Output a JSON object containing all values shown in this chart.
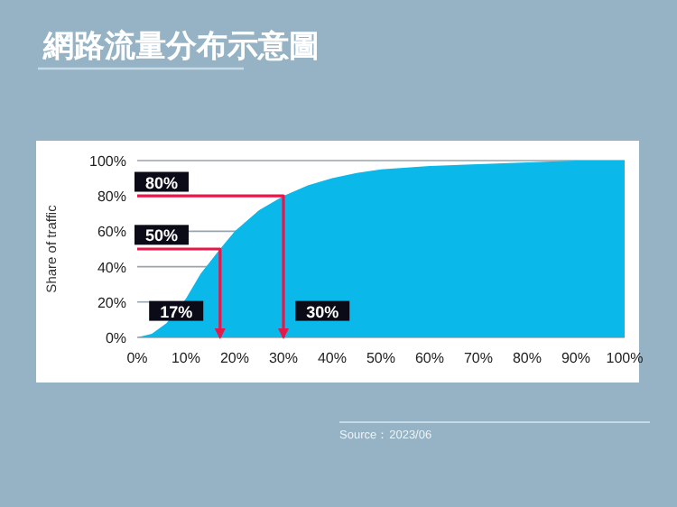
{
  "chart_data": {
    "type": "area",
    "title": "網路流量分布示意圖",
    "ylabel": "Share of traffic",
    "x": [
      0,
      3,
      6,
      10,
      13,
      17,
      20,
      25,
      30,
      35,
      40,
      45,
      50,
      60,
      70,
      80,
      90,
      100
    ],
    "series": [
      {
        "color": "#0ab8ea",
        "values": [
          0,
          2,
          8,
          22,
          36,
          50,
          60,
          72,
          80,
          86,
          90,
          93,
          95,
          97,
          98,
          99,
          100,
          100
        ]
      },
      {
        "type": "line",
        "color": "#e8174a",
        "x": [
          0,
          30,
          30
        ],
        "values": [
          80,
          80,
          0
        ]
      },
      {
        "type": "line",
        "color": "#e8174a",
        "x": [
          0,
          17,
          17
        ],
        "values": [
          50,
          50,
          0
        ]
      }
    ],
    "xlim": [
      0,
      100
    ],
    "ylim": [
      0,
      100
    ],
    "xticks": [
      {
        "value": 0,
        "label": "0%"
      },
      {
        "value": 10,
        "label": "10%"
      },
      {
        "value": 20,
        "label": "20%"
      },
      {
        "value": 30,
        "label": "30%"
      },
      {
        "value": 40,
        "label": "40%"
      },
      {
        "value": 50,
        "label": "50%"
      },
      {
        "value": 60,
        "label": "60%"
      },
      {
        "value": 70,
        "label": "70%"
      },
      {
        "value": 80,
        "label": "80%"
      },
      {
        "value": 90,
        "label": "90%"
      },
      {
        "value": 100,
        "label": "100%"
      }
    ],
    "yticks": [
      {
        "value": 0,
        "label": "0%"
      },
      {
        "value": 20,
        "label": "20%"
      },
      {
        "value": 40,
        "label": "40%"
      },
      {
        "value": 60,
        "label": "60%"
      },
      {
        "value": 80,
        "label": "80%"
      },
      {
        "value": 100,
        "label": "100%"
      }
    ],
    "grid": "y",
    "annotations": [
      {
        "text": "80%",
        "x": 5,
        "y": 88
      },
      {
        "text": "50%",
        "x": 5,
        "y": 58
      },
      {
        "text": "17%",
        "x": 8,
        "y": 15
      },
      {
        "text": "30%",
        "x": 38,
        "y": 15
      },
      "Source：2023/06"
    ]
  }
}
